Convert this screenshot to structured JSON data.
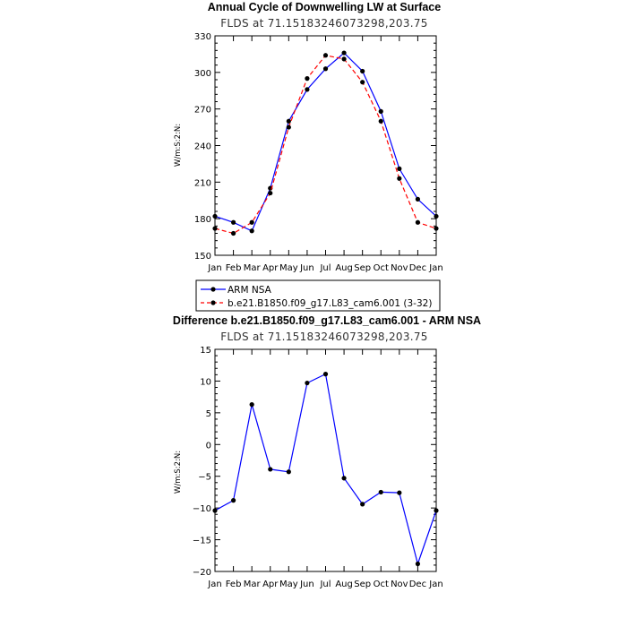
{
  "chart_data": [
    {
      "type": "line",
      "title": "Annual Cycle of Downwelling LW at Surface",
      "subtitle": "FLDS at 71.15183246073298,203.75",
      "xlabel": "",
      "ylabel": "W/m:S:2:N:",
      "categories": [
        "Jan",
        "Feb",
        "Mar",
        "Apr",
        "May",
        "Jun",
        "Jul",
        "Aug",
        "Sep",
        "Oct",
        "Nov",
        "Dec",
        "Jan"
      ],
      "ylim": [
        150,
        330
      ],
      "yticks": [
        150,
        180,
        210,
        240,
        270,
        300,
        330
      ],
      "series": [
        {
          "name": "ARM NSA",
          "color": "#0000ff",
          "dash": "solid",
          "values": [
            182,
            177,
            170,
            205,
            260,
            286,
            303,
            316,
            301,
            268,
            221,
            196,
            182
          ]
        },
        {
          "name": "b.e21.B1850.f09_g17.L83_cam6.001 (3-32)",
          "color": "#ff0000",
          "dash": "dashed",
          "values": [
            172,
            168,
            177,
            201,
            255,
            295,
            314,
            311,
            292,
            260,
            213,
            177,
            172
          ]
        }
      ],
      "legend_position": "bottom"
    },
    {
      "type": "line",
      "title": "Difference b.e21.B1850.f09_g17.L83_cam6.001 - ARM NSA",
      "subtitle": "FLDS at 71.15183246073298,203.75",
      "xlabel": "",
      "ylabel": "W/m:S:2:N:",
      "categories": [
        "Jan",
        "Feb",
        "Mar",
        "Apr",
        "May",
        "Jun",
        "Jul",
        "Aug",
        "Sep",
        "Oct",
        "Nov",
        "Dec",
        "Jan"
      ],
      "ylim": [
        -20,
        15
      ],
      "yticks": [
        -20,
        -15,
        -10,
        -5,
        0,
        5,
        10,
        15
      ],
      "series": [
        {
          "name": "Difference",
          "color": "#0000ff",
          "dash": "solid",
          "values": [
            -10.4,
            -8.8,
            6.3,
            -3.9,
            -4.3,
            9.7,
            11.1,
            -5.3,
            -9.4,
            -7.5,
            -7.6,
            -18.8,
            -10.4
          ]
        }
      ]
    }
  ]
}
